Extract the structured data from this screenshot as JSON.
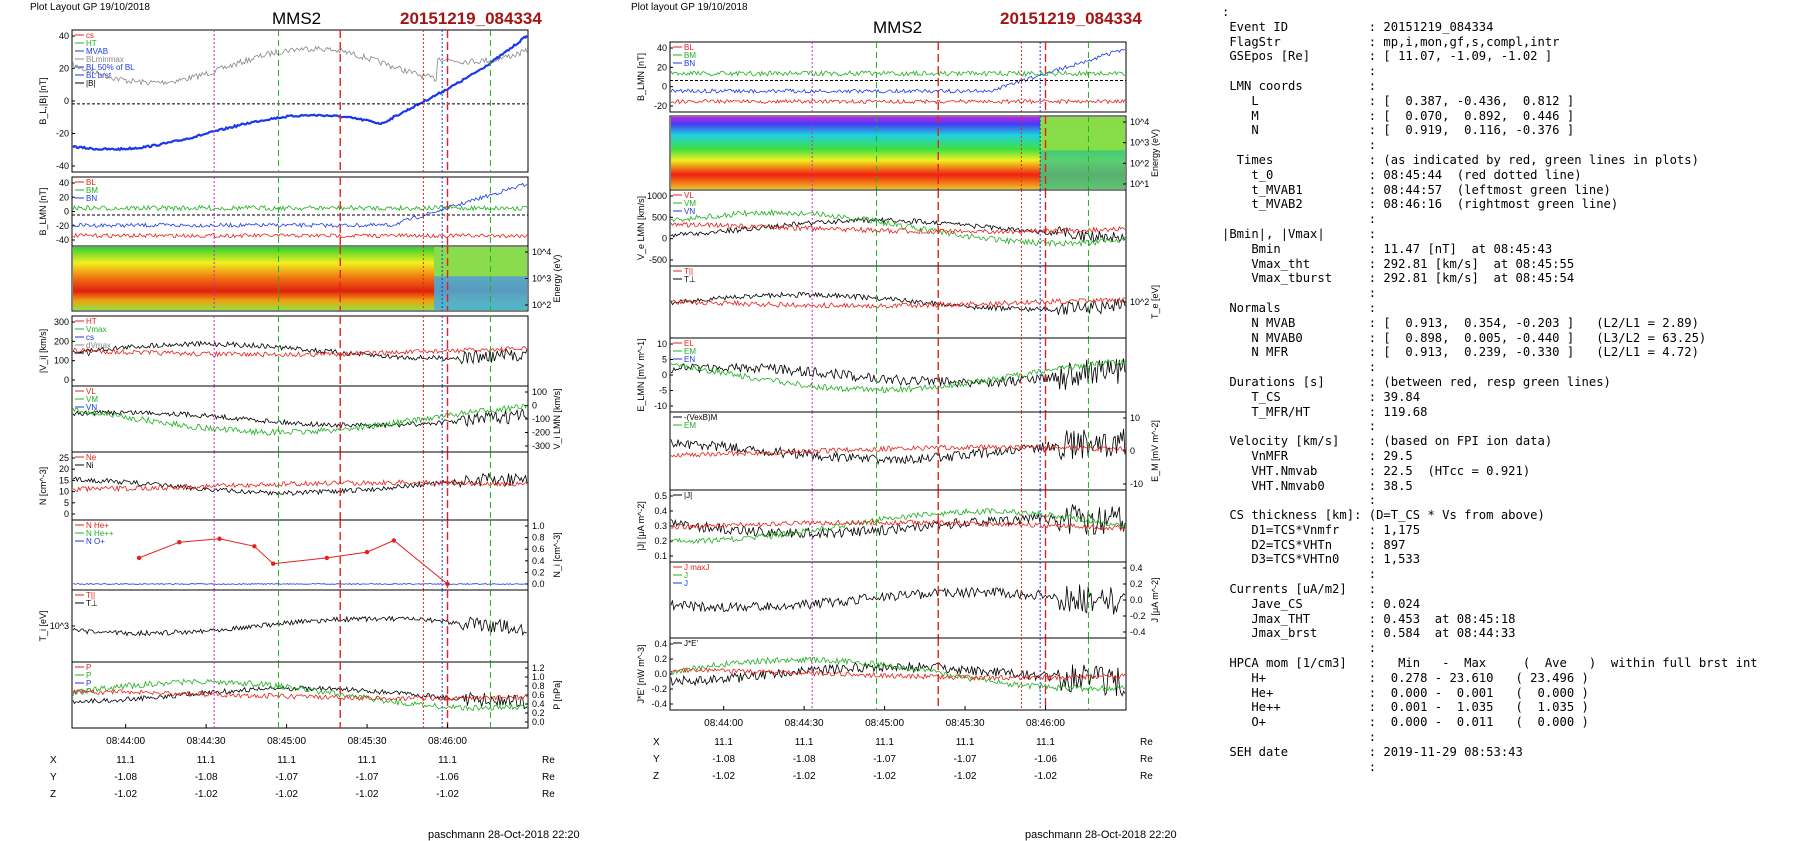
{
  "header": {
    "left_plot_label": "Plot Layout GP 19/10/2018",
    "mid_plot_label": "Plot layout GP 19/10/2018",
    "spacecraft": "MMS2",
    "event_tag": "20151219_084334"
  },
  "footer": {
    "credit": "paschmann 28-Oct-2018 22:20"
  },
  "time_axis": {
    "ticks": [
      "08:44:00",
      "08:44:30",
      "08:45:00",
      "08:45:30",
      "08:46:00"
    ]
  },
  "position_table": {
    "rows": [
      {
        "label": "X",
        "values": [
          "11.1",
          "11.1",
          "11.1",
          "11.1",
          "11.1"
        ],
        "unit": "Re"
      },
      {
        "label": "Y",
        "values": [
          "-1.08",
          "-1.08",
          "-1.07",
          "-1.07",
          "-1.06"
        ],
        "unit": "Re"
      },
      {
        "label": "Z",
        "values": [
          "-1.02",
          "-1.02",
          "-1.02",
          "-1.02",
          "-1.02"
        ],
        "unit": "Re"
      }
    ]
  },
  "colors": {
    "red": "#e8201a",
    "green": "#20b020",
    "blue": "#1a3ae8",
    "magenta": "#d020d0",
    "gray": "#888888"
  },
  "chart_data": [
    {
      "type": "line",
      "panels": [
        {
          "ylabel": "B_L,|B| [nT]",
          "ylim": [
            -45,
            45
          ],
          "ticks": [
            "40",
            "20",
            "0",
            "-20",
            "-40"
          ],
          "legend": [
            "cs",
            "HT",
            "MVAB",
            "BLminmax",
            "BL 50% of BL",
            "BL brst",
            "|B|"
          ]
        },
        {
          "ylabel": "B_LMN [nT]",
          "ticks": [
            "40",
            "20",
            "0",
            "-20",
            "-40"
          ],
          "legend": [
            "BL",
            "BM",
            "BN"
          ]
        },
        {
          "ylabel": "Energy (eV)",
          "ticks": [
            "10^4",
            "10^3",
            "10^2"
          ]
        },
        {
          "ylabel": "|V_i| [km/s]",
          "ylim": [
            0,
            300
          ],
          "ticks": [
            "300",
            "200",
            "100",
            "0"
          ],
          "legend": [
            "HT",
            "Vmax",
            "cs",
            "dVmax",
            "V"
          ]
        },
        {
          "ylabel": "V_i LMN [km/s]",
          "ticks": [
            "100",
            "0",
            "-100",
            "-200",
            "-300"
          ],
          "legend": [
            "VL",
            "VM",
            "VN"
          ]
        },
        {
          "ylabel": "N [cm^-3]",
          "ylim": [
            0,
            25
          ],
          "ticks": [
            "25",
            "20",
            "15",
            "10",
            "5",
            "0"
          ],
          "legend": [
            "Ne",
            "Ni"
          ]
        },
        {
          "ylabel": "N_i [cm^-3]",
          "ylim": [
            0,
            1.0
          ],
          "ticks": [
            "1.0",
            "0.8",
            "0.6",
            "0.4",
            "0.2",
            "0.0"
          ],
          "legend": [
            "N He+",
            "N He++",
            "N O+"
          ]
        },
        {
          "ylabel": "T_i [eV]",
          "ticks": [
            "10^3"
          ],
          "legend": [
            "T||",
            "T⊥"
          ]
        },
        {
          "ylabel": "P [nPa]",
          "ylim": [
            0,
            1.2
          ],
          "ticks": [
            "1.2",
            "1.0",
            "0.8",
            "0.6",
            "0.4",
            "0.2",
            "0.0"
          ],
          "legend": [
            "P",
            "P",
            "P",
            "P"
          ]
        }
      ],
      "he_pp_samples": {
        "x": [
          "08:44:05",
          "08:44:20",
          "08:44:35",
          "08:44:48",
          "08:44:55",
          "08:45:15",
          "08:45:30",
          "08:45:40",
          "08:46:00"
        ],
        "y": [
          0.45,
          0.72,
          0.78,
          0.65,
          0.35,
          0.45,
          0.55,
          0.75,
          0.0
        ]
      }
    },
    {
      "type": "line",
      "panels": [
        {
          "ylabel": "B_LMN [nT]",
          "ticks": [
            "40",
            "20",
            "0",
            "-20"
          ],
          "legend": [
            "BL",
            "BM",
            "BN"
          ]
        },
        {
          "ylabel": "Energy (eV)",
          "ticks": [
            "10^4",
            "10^3",
            "10^2",
            "10^1"
          ]
        },
        {
          "ylabel": "V_e LMN [km/s]",
          "ticks": [
            "1000",
            "500",
            "0",
            "-500"
          ],
          "legend": [
            "VL",
            "VM",
            "VN"
          ]
        },
        {
          "ylabel": "T_e [eV]",
          "ticks": [
            "10^2"
          ],
          "legend": [
            "T||",
            "T⊥"
          ]
        },
        {
          "ylabel": "E_LMN [mV m^-1]",
          "ticks": [
            "10",
            "5",
            "0",
            "-5",
            "-10"
          ],
          "legend": [
            "EL",
            "EM",
            "EN"
          ]
        },
        {
          "ylabel": "E_M [mV m^-2]",
          "ticks": [
            "10",
            "0",
            "-10"
          ],
          "legend": [
            "-(VexB)M",
            "EM"
          ]
        },
        {
          "ylabel": "|J| [μA m^-2]",
          "ticks": [
            "0.5",
            "0.4",
            "0.3",
            "0.2",
            "0.1"
          ],
          "legend": [
            "|J|"
          ]
        },
        {
          "ylabel": "J [μA m^-2]",
          "ticks": [
            "0.4",
            "0.2",
            "0.0",
            "-0.2",
            "-0.4"
          ],
          "legend": [
            "J maxJ",
            "J",
            "J"
          ]
        },
        {
          "ylabel": "J*E' [nW m^-3]",
          "ticks": [
            "0.4",
            "0.2",
            "0.0",
            "-0.2",
            "-0.4"
          ],
          "legend": [
            "J*E'"
          ]
        }
      ]
    }
  ],
  "info_lines": [
    ":",
    " Event ID           : 20151219_084334",
    " FlagStr            : mp,i,mon,gf,s,compl,intr",
    " GSEpos [Re]        : [ 11.07, -1.09, -1.02 ]",
    "                    :",
    " LMN coords         :",
    "    L               : [  0.387, -0.436,  0.812 ]",
    "    M               : [  0.070,  0.892,  0.446 ]",
    "    N               : [  0.919,  0.116, -0.376 ]",
    "                    :",
    "  Times             : (as indicated by red, green lines in plots)",
    "    t_0             : 08:45:44  (red dotted line)",
    "    t_MVAB1         : 08:44:57  (leftmost green line)",
    "    t_MVAB2         : 08:46:16  (rightmost green line)",
    "                    :",
    "|Bmin|, |Vmax|      :",
    "    Bmin            : 11.47 [nT]  at 08:45:43",
    "    Vmax_tht        : 292.81 [km/s]  at 08:45:55",
    "    Vmax_tburst     : 292.81 [km/s]  at 08:45:54",
    "                    :",
    " Normals            :",
    "    N MVAB          : [  0.913,  0.354, -0.203 ]   (L2/L1 = 2.89)",
    "    N MVAB0         : [  0.898,  0.005, -0.440 ]   (L3/L2 = 63.25)",
    "    N MFR           : [  0.913,  0.239, -0.330 ]   (L2/L1 = 4.72)",
    "                    :",
    " Durations [s]      : (between red, resp green lines)",
    "    T_CS            : 39.84",
    "    T_MFR/HT        : 119.68",
    "                    :",
    " Velocity [km/s]    : (based on FPI ion data)",
    "    VnMFR           : 29.5",
    "    VHT.Nmvab       : 22.5  (HTcc = 0.921)",
    "    VHT.Nmvab0      : 38.5",
    "                    :",
    " CS thickness [km]: (D=T_CS * Vs from above)",
    "    D1=TCS*Vnmfr    : 1,175",
    "    D2=TCS*VHTn     : 897",
    "    D3=TCS*VHTn0    : 1,533",
    "                    :",
    " Currents [uA/m2]   :",
    "    Jave_CS         : 0.024",
    "    Jmax_THT        : 0.453  at 08:45:18",
    "    Jmax_brst       : 0.584  at 08:44:33",
    "                    :",
    " HPCA mom [1/cm3]   :   Min   -  Max     (  Ave   )  within full brst int",
    "    H+              :  0.278 - 23.610   ( 23.496 )",
    "    He+             :  0.000 -  0.001   (  0.000 )",
    "    He++            :  0.001 -  1.035   (  1.035 )",
    "    O+              :  0.000 -  0.011   (  0.000 )",
    "                    :",
    " SEH date           : 2019-11-29 08:53:43",
    "                    :"
  ]
}
